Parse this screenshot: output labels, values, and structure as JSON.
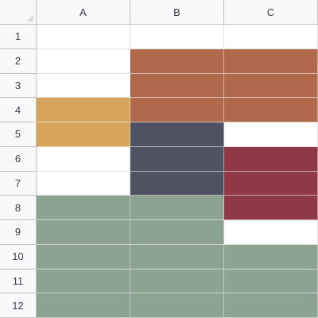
{
  "sheet": {
    "columns": [
      "A",
      "B",
      "C"
    ],
    "rows": [
      "1",
      "2",
      "3",
      "4",
      "5",
      "6",
      "7",
      "8",
      "9",
      "10",
      "11",
      "12"
    ],
    "palette": {
      "empty": "#ffffff",
      "rust": "#b0694a",
      "gold": "#d5a35b",
      "slate": "#4f5263",
      "maroon": "#8f3846",
      "sage": "#8da392"
    },
    "cell_fills": [
      [
        "empty",
        "empty",
        "empty"
      ],
      [
        "empty",
        "rust",
        "rust"
      ],
      [
        "empty",
        "rust",
        "rust"
      ],
      [
        "gold",
        "rust",
        "rust"
      ],
      [
        "gold",
        "slate",
        "empty"
      ],
      [
        "empty",
        "slate",
        "maroon"
      ],
      [
        "empty",
        "slate",
        "maroon"
      ],
      [
        "sage",
        "sage",
        "maroon"
      ],
      [
        "sage",
        "sage",
        "empty"
      ],
      [
        "sage",
        "sage",
        "sage"
      ],
      [
        "sage",
        "sage",
        "sage"
      ],
      [
        "sage",
        "sage",
        "sage"
      ]
    ]
  }
}
